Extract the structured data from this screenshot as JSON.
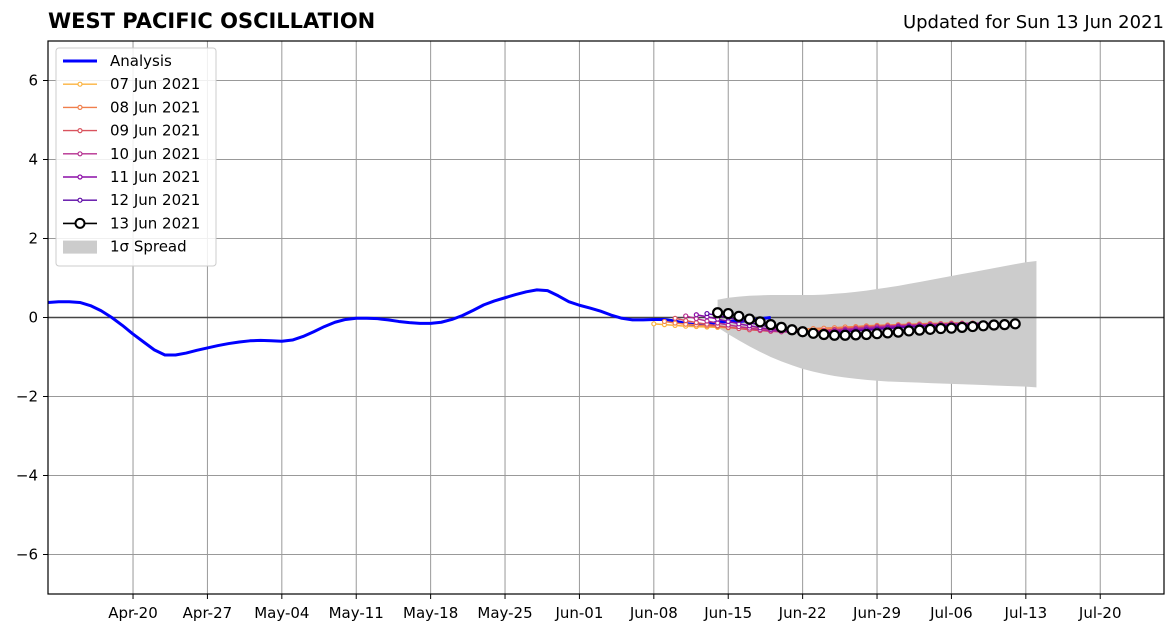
{
  "title": "WEST PACIFIC OSCILLATION",
  "updated": "Updated for Sun 13 Jun 2021",
  "chart_data": {
    "type": "line",
    "ylim": [
      -7,
      7
    ],
    "xlim": [
      "2021-04-12",
      "2021-07-26"
    ],
    "yticks": [
      -6,
      -4,
      -2,
      0,
      2,
      4,
      6
    ],
    "ytick_labels": [
      "−6",
      "−4",
      "−2",
      "0",
      "2",
      "4",
      "6"
    ],
    "xticks": [
      "2021-04-20",
      "2021-04-27",
      "2021-05-04",
      "2021-05-11",
      "2021-05-18",
      "2021-05-25",
      "2021-06-01",
      "2021-06-08",
      "2021-06-15",
      "2021-06-22",
      "2021-06-29",
      "2021-07-06",
      "2021-07-13",
      "2021-07-20"
    ],
    "xtick_labels": [
      "Apr-20",
      "Apr-27",
      "May-04",
      "May-11",
      "May-18",
      "May-25",
      "Jun-01",
      "Jun-08",
      "Jun-15",
      "Jun-22",
      "Jun-29",
      "Jul-06",
      "Jul-13",
      "Jul-20"
    ],
    "grid": true,
    "legend_position": "top-left",
    "analysis": {
      "name": "Analysis",
      "color": "#0000ff",
      "start": "2021-04-12",
      "values": [
        0.38,
        0.4,
        0.4,
        0.38,
        0.3,
        0.17,
        0.0,
        -0.2,
        -0.42,
        -0.62,
        -0.82,
        -0.95,
        -0.95,
        -0.9,
        -0.83,
        -0.77,
        -0.71,
        -0.66,
        -0.62,
        -0.59,
        -0.58,
        -0.59,
        -0.6,
        -0.57,
        -0.48,
        -0.36,
        -0.23,
        -0.12,
        -0.05,
        -0.02,
        -0.02,
        -0.03,
        -0.06,
        -0.1,
        -0.13,
        -0.15,
        -0.15,
        -0.12,
        -0.05,
        0.05,
        0.18,
        0.32,
        0.42,
        0.5,
        0.58,
        0.65,
        0.7,
        0.68,
        0.55,
        0.4,
        0.31,
        0.24,
        0.16,
        0.06,
        -0.02,
        -0.06,
        -0.06,
        -0.05,
        -0.05,
        -0.09,
        -0.15,
        -0.19,
        -0.17,
        -0.12,
        -0.1,
        -0.1,
        -0.08,
        -0.03,
        0.0
      ]
    },
    "forecasts": [
      {
        "name": "07 Jun 2021",
        "color": "#fbb33f",
        "start": "2021-06-08",
        "values": [
          -0.16,
          -0.18,
          -0.2,
          -0.22,
          -0.23,
          -0.24,
          -0.25,
          -0.26,
          -0.27,
          -0.28,
          -0.28,
          -0.29,
          -0.29,
          -0.3,
          -0.3,
          -0.3,
          -0.29,
          -0.28,
          -0.27,
          -0.26,
          -0.25,
          -0.23,
          -0.22,
          -0.21,
          -0.2,
          -0.19,
          -0.18,
          -0.17,
          -0.16
        ]
      },
      {
        "name": "08 Jun 2021",
        "color": "#f07f4c",
        "start": "2021-06-09",
        "values": [
          -0.1,
          -0.14,
          -0.17,
          -0.19,
          -0.21,
          -0.23,
          -0.25,
          -0.27,
          -0.28,
          -0.29,
          -0.3,
          -0.3,
          -0.3,
          -0.29,
          -0.28,
          -0.27,
          -0.26,
          -0.24,
          -0.23,
          -0.21,
          -0.2,
          -0.19,
          -0.18,
          -0.17,
          -0.16,
          -0.15,
          -0.15,
          -0.14,
          -0.14
        ]
      },
      {
        "name": "09 Jun 2021",
        "color": "#d9535e",
        "start": "2021-06-10",
        "values": [
          -0.02,
          -0.08,
          -0.13,
          -0.17,
          -0.21,
          -0.25,
          -0.28,
          -0.31,
          -0.33,
          -0.35,
          -0.36,
          -0.36,
          -0.35,
          -0.34,
          -0.32,
          -0.3,
          -0.28,
          -0.26,
          -0.24,
          -0.22,
          -0.21,
          -0.2,
          -0.19,
          -0.18,
          -0.17,
          -0.16,
          -0.15,
          -0.15,
          -0.14
        ]
      },
      {
        "name": "10 Jun 2021",
        "color": "#b42e8f",
        "start": "2021-06-11",
        "values": [
          0.04,
          -0.03,
          -0.09,
          -0.14,
          -0.19,
          -0.23,
          -0.27,
          -0.31,
          -0.34,
          -0.36,
          -0.37,
          -0.37,
          -0.36,
          -0.34,
          -0.32,
          -0.3,
          -0.28,
          -0.26,
          -0.24,
          -0.22,
          -0.21,
          -0.2,
          -0.19,
          -0.18,
          -0.17,
          -0.16,
          -0.15,
          -0.15,
          -0.14
        ]
      },
      {
        "name": "11 Jun 2021",
        "color": "#8c0fa7",
        "start": "2021-06-12",
        "values": [
          0.07,
          0.02,
          -0.04,
          -0.1,
          -0.16,
          -0.21,
          -0.26,
          -0.3,
          -0.33,
          -0.36,
          -0.38,
          -0.38,
          -0.37,
          -0.35,
          -0.33,
          -0.31,
          -0.29,
          -0.27,
          -0.25,
          -0.23,
          -0.22,
          -0.21,
          -0.2,
          -0.19,
          -0.18,
          -0.17,
          -0.16,
          -0.15,
          -0.15
        ]
      },
      {
        "name": "12 Jun 2021",
        "color": "#5a06a4",
        "start": "2021-06-13",
        "values": [
          0.1,
          0.05,
          -0.01,
          -0.07,
          -0.13,
          -0.19,
          -0.24,
          -0.29,
          -0.33,
          -0.36,
          -0.38,
          -0.39,
          -0.38,
          -0.36,
          -0.34,
          -0.32,
          -0.3,
          -0.28,
          -0.26,
          -0.24,
          -0.23,
          -0.22,
          -0.21,
          -0.2,
          -0.19,
          -0.18,
          -0.17,
          -0.16,
          -0.16
        ]
      },
      {
        "name": "13 Jun 2021",
        "color": "#000000",
        "start": "2021-06-14",
        "values": [
          0.12,
          0.1,
          0.03,
          -0.04,
          -0.11,
          -0.18,
          -0.25,
          -0.31,
          -0.36,
          -0.4,
          -0.43,
          -0.45,
          -0.45,
          -0.44,
          -0.43,
          -0.41,
          -0.39,
          -0.37,
          -0.34,
          -0.32,
          -0.3,
          -0.28,
          -0.27,
          -0.25,
          -0.23,
          -0.21,
          -0.19,
          -0.18,
          -0.16
        ]
      }
    ],
    "spread": {
      "name": "1σ Spread",
      "color": "#cccccc",
      "start": "2021-06-14",
      "upper": [
        0.45,
        0.5,
        0.53,
        0.55,
        0.56,
        0.57,
        0.57,
        0.57,
        0.57,
        0.57,
        0.58,
        0.6,
        0.62,
        0.65,
        0.68,
        0.72,
        0.76,
        0.8,
        0.85,
        0.9,
        0.95,
        1.0,
        1.05,
        1.1,
        1.15,
        1.2,
        1.25,
        1.3,
        1.35,
        1.4,
        1.43
      ],
      "lower": [
        -0.25,
        -0.42,
        -0.58,
        -0.73,
        -0.87,
        -1.0,
        -1.11,
        -1.21,
        -1.3,
        -1.37,
        -1.43,
        -1.48,
        -1.52,
        -1.55,
        -1.58,
        -1.6,
        -1.62,
        -1.63,
        -1.64,
        -1.65,
        -1.66,
        -1.67,
        -1.68,
        -1.69,
        -1.7,
        -1.71,
        -1.72,
        -1.73,
        -1.74,
        -1.75,
        -1.77
      ]
    }
  }
}
